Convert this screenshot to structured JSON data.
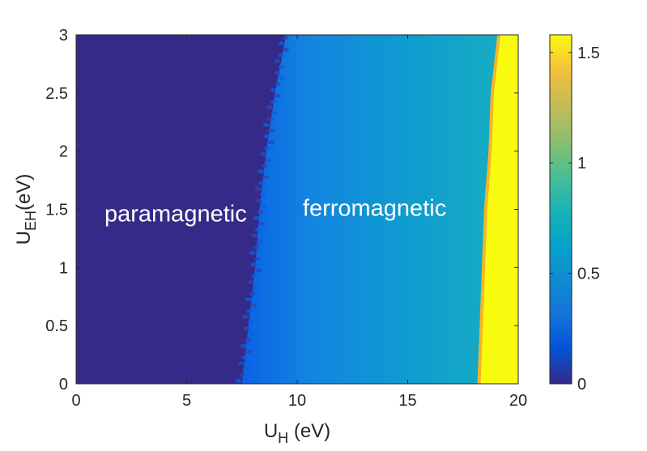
{
  "chart_data": {
    "type": "heatmap",
    "title": "",
    "xlabel": {
      "main": "U",
      "sub": "H",
      "rest": " (eV)"
    },
    "ylabel": {
      "main": "U",
      "sub": "EH",
      "rest": "(eV)"
    },
    "xlim": [
      0,
      20
    ],
    "ylim": [
      0,
      3
    ],
    "xticks": [
      0,
      5,
      10,
      15,
      20
    ],
    "xtick_labels": [
      "0",
      "5",
      "10",
      "15",
      "20"
    ],
    "yticks": [
      0,
      0.5,
      1,
      1.5,
      2,
      2.5,
      3
    ],
    "ytick_labels": [
      "0",
      "0.5",
      "1",
      "1.5",
      "2",
      "2.5",
      "3"
    ],
    "colorbar": {
      "colormap": "parula",
      "range": [
        0,
        1.58
      ],
      "ticks": [
        0,
        0.5,
        1,
        1.5
      ],
      "tick_labels": [
        "0",
        "0.5",
        "1",
        "1.5"
      ]
    },
    "regions": [
      {
        "label": "paramagnetic",
        "value": 0,
        "x_range": [
          0,
          7.8
        ]
      },
      {
        "label": "ferromagnetic",
        "value_range": [
          0.25,
          0.65
        ],
        "x_range": [
          7.8,
          18.7
        ]
      },
      {
        "label": "",
        "value": 1.58,
        "x_range": [
          18.7,
          20
        ]
      }
    ],
    "boundaries": {
      "para_ferro": [
        {
          "y": 0,
          "x": 7.5
        },
        {
          "y": 0.5,
          "x": 7.8
        },
        {
          "y": 1,
          "x": 8.1
        },
        {
          "y": 1.5,
          "x": 8.3
        },
        {
          "y": 2,
          "x": 8.6
        },
        {
          "y": 2.5,
          "x": 9.0
        },
        {
          "y": 3,
          "x": 9.5
        }
      ],
      "ferro_saturated": [
        {
          "y": 0,
          "x": 18.3
        },
        {
          "y": 0.5,
          "x": 18.4
        },
        {
          "y": 1,
          "x": 18.5
        },
        {
          "y": 1.5,
          "x": 18.6
        },
        {
          "y": 2,
          "x": 18.8
        },
        {
          "y": 2.5,
          "x": 18.9
        },
        {
          "y": 3,
          "x": 19.2
        }
      ]
    },
    "grid": false
  },
  "colors": {
    "paramagnetic": "#352a87",
    "ferro_left": "#0f6fe0",
    "ferro_right": "#12aac5",
    "saturated": "#f9fb0e",
    "edge_orange": "#f5b428",
    "axis": "#262626"
  }
}
